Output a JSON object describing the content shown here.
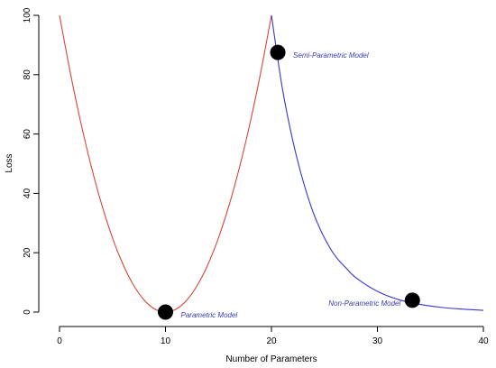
{
  "chart_data": {
    "type": "line",
    "xlabel": "Number of Parameters",
    "ylabel": "Loss",
    "xlim": [
      0,
      40
    ],
    "ylim": [
      0,
      100
    ],
    "x_ticks": [
      0,
      10,
      20,
      30,
      40
    ],
    "y_ticks": [
      0,
      20,
      40,
      60,
      80,
      100
    ],
    "grid": false,
    "series": [
      {
        "color": "#d6453a",
        "x": [
          0,
          1,
          2,
          3,
          4,
          5,
          6,
          7,
          8,
          9,
          10,
          11,
          12,
          13,
          14,
          15,
          16,
          17,
          18,
          19,
          20
        ],
        "y": [
          100,
          81,
          64,
          49,
          36,
          25,
          16,
          9,
          4,
          1,
          0,
          1,
          4,
          9,
          16,
          25,
          36,
          49,
          64,
          81,
          100
        ]
      },
      {
        "color": "#3535d0",
        "x": [
          20,
          21,
          22,
          23,
          24,
          25,
          26,
          27,
          28,
          30,
          32,
          34,
          36,
          38,
          40
        ],
        "y": [
          100,
          76,
          58,
          44,
          33,
          25,
          19,
          15,
          11.5,
          7,
          4.2,
          2.6,
          1.6,
          1,
          0.6
        ]
      }
    ],
    "points": [
      {
        "x": 10,
        "y": 0,
        "label": "Parametric Model",
        "label_side": "right"
      },
      {
        "x": 20.6,
        "y": 87.5,
        "label": "Semi-Parametric Model",
        "label_side": "right"
      },
      {
        "x": 33.3,
        "y": 4,
        "label": "Non-Parametric Model",
        "label_side": "left"
      }
    ],
    "colors": {
      "axis": "#000000",
      "point": "#000000",
      "annotation": "#3a3ab8"
    }
  }
}
